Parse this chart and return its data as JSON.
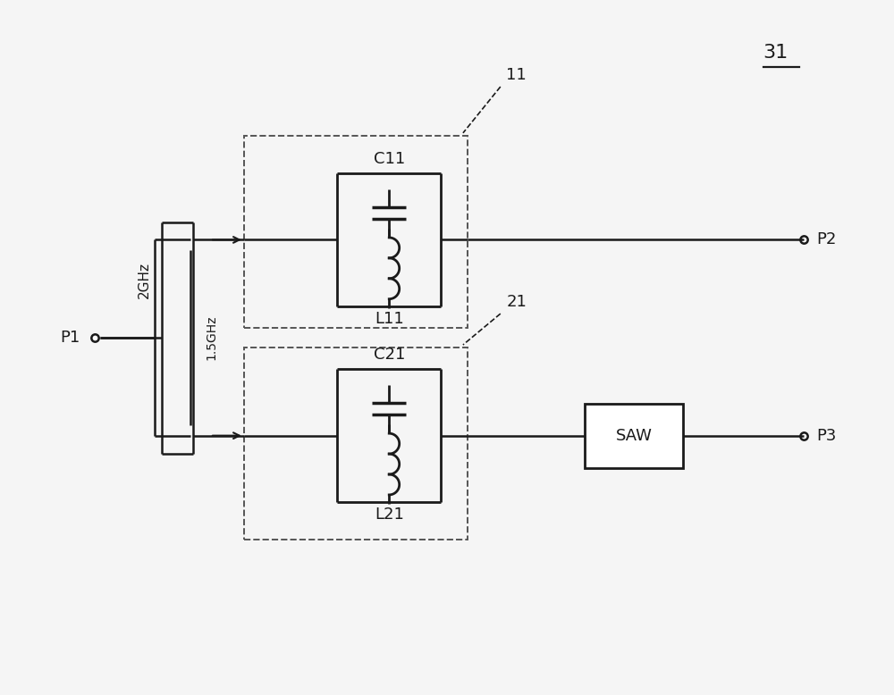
{
  "bg_color": "#f5f5f5",
  "line_color": "#1a1a1a",
  "dashed_color": "#555555",
  "label_31": "31",
  "label_11": "11",
  "label_21": "21",
  "label_P1": "P1",
  "label_P2": "P2",
  "label_P3": "P3",
  "label_C11": "C11",
  "label_L11": "L11",
  "label_C21": "C21",
  "label_L21": "L21",
  "label_SAW": "SAW",
  "label_2GHz": "2GHz",
  "label_15GHz": "1.5GHz"
}
